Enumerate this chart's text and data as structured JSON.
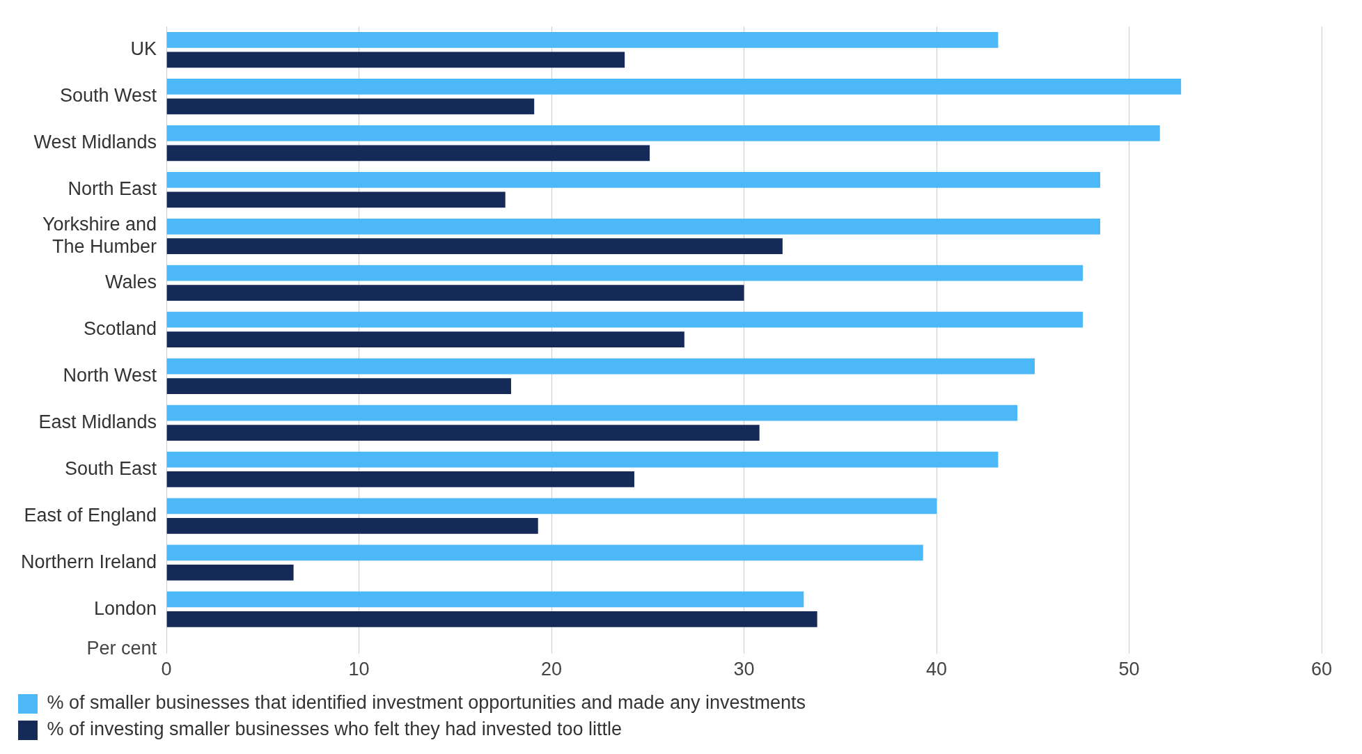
{
  "chart_data": {
    "type": "bar",
    "orientation": "horizontal",
    "xlabel": "Per cent",
    "categories": [
      "UK",
      "South West",
      "West Midlands",
      "North East",
      "Yorkshire and The Humber",
      "Wales",
      "Scotland",
      "North West",
      "East Midlands",
      "South East",
      "East of England",
      "Northern Ireland",
      "London"
    ],
    "series": [
      {
        "name": "% of smaller businesses that identified investment opportunities and made any investments",
        "color": "#4db8f7",
        "values": [
          43.2,
          52.7,
          51.6,
          48.5,
          48.5,
          47.6,
          47.6,
          45.1,
          44.2,
          43.2,
          40.0,
          39.3,
          33.1
        ]
      },
      {
        "name": "% of investing smaller businesses who felt they had invested too little",
        "color": "#152a57",
        "values": [
          23.8,
          19.1,
          25.1,
          17.6,
          32.0,
          30.0,
          26.9,
          17.9,
          30.8,
          24.3,
          19.3,
          6.6,
          33.8
        ]
      }
    ],
    "xlim": [
      0,
      60
    ],
    "xticks": [
      0,
      10,
      20,
      30,
      40,
      50,
      60
    ],
    "grid": "x",
    "legend": "bottom"
  }
}
